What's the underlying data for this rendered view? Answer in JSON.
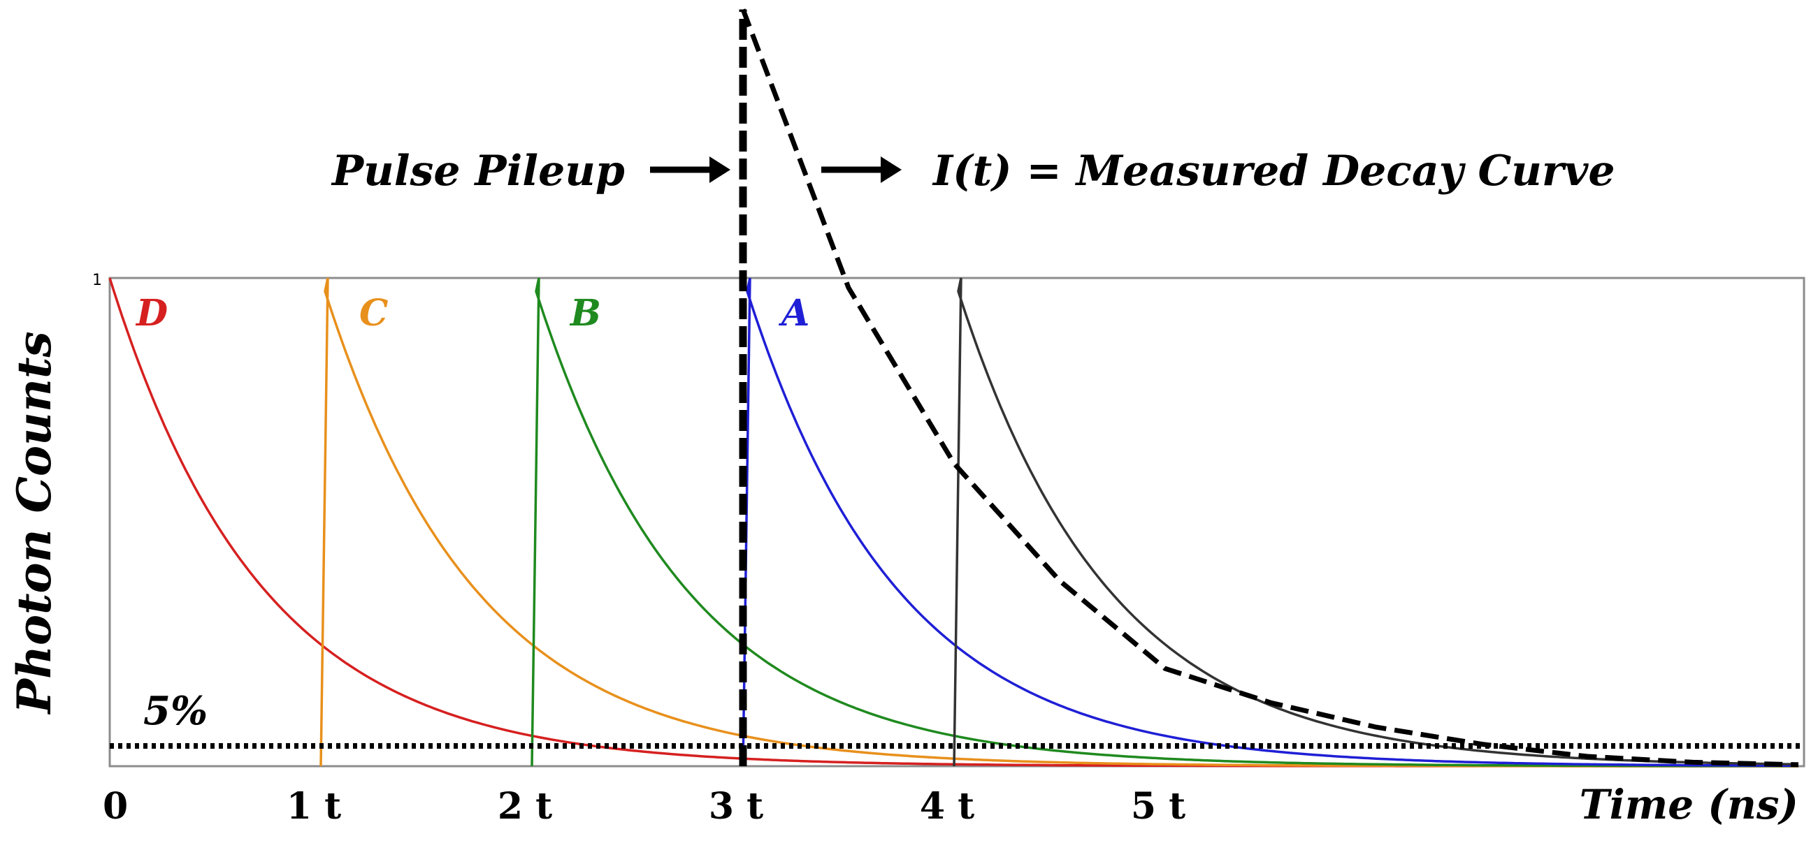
{
  "chart_data": {
    "type": "line",
    "title": "",
    "xlabel": "Time (ns)",
    "ylabel": "Photon Counts",
    "xlim": [
      0,
      8
    ],
    "ylim": [
      0,
      1
    ],
    "y_tick_label": "1",
    "x_ticks": [
      {
        "value": 0,
        "label": "0"
      },
      {
        "value": 1,
        "label": "1 t"
      },
      {
        "value": 2,
        "label": "2 t"
      },
      {
        "value": 3,
        "label": "3 t"
      },
      {
        "value": 4,
        "label": "4 t"
      },
      {
        "value": 5,
        "label": "5 t"
      }
    ],
    "decay_constant": 0.72,
    "series": [
      {
        "name": "D",
        "start": 0,
        "color": "#d62020"
      },
      {
        "name": "C",
        "start": 1,
        "color": "#e8901c"
      },
      {
        "name": "B",
        "start": 2,
        "color": "#1f8a1f"
      },
      {
        "name": "A",
        "start": 3,
        "color": "#1f1fd6"
      },
      {
        "name": "",
        "start": 4,
        "color": "#333333"
      }
    ],
    "measured_curve": {
      "label": "I(t) = Measured Decay Curve",
      "start": 3,
      "peak_y": 1.55,
      "points": [
        [
          3.0,
          1.55
        ],
        [
          3.5,
          0.98
        ],
        [
          4.0,
          0.62
        ],
        [
          4.5,
          0.38
        ],
        [
          5.0,
          0.2
        ],
        [
          5.5,
          0.13
        ],
        [
          6.0,
          0.08
        ],
        [
          6.5,
          0.045
        ],
        [
          7.0,
          0.02
        ],
        [
          7.5,
          0.008
        ],
        [
          8.0,
          0.003
        ]
      ]
    },
    "threshold": {
      "value": 0.05,
      "label": "5%"
    },
    "annotations": {
      "pileup_label": "Pulse Pileup",
      "series_labels": [
        "D",
        "C",
        "B",
        "A"
      ]
    }
  }
}
